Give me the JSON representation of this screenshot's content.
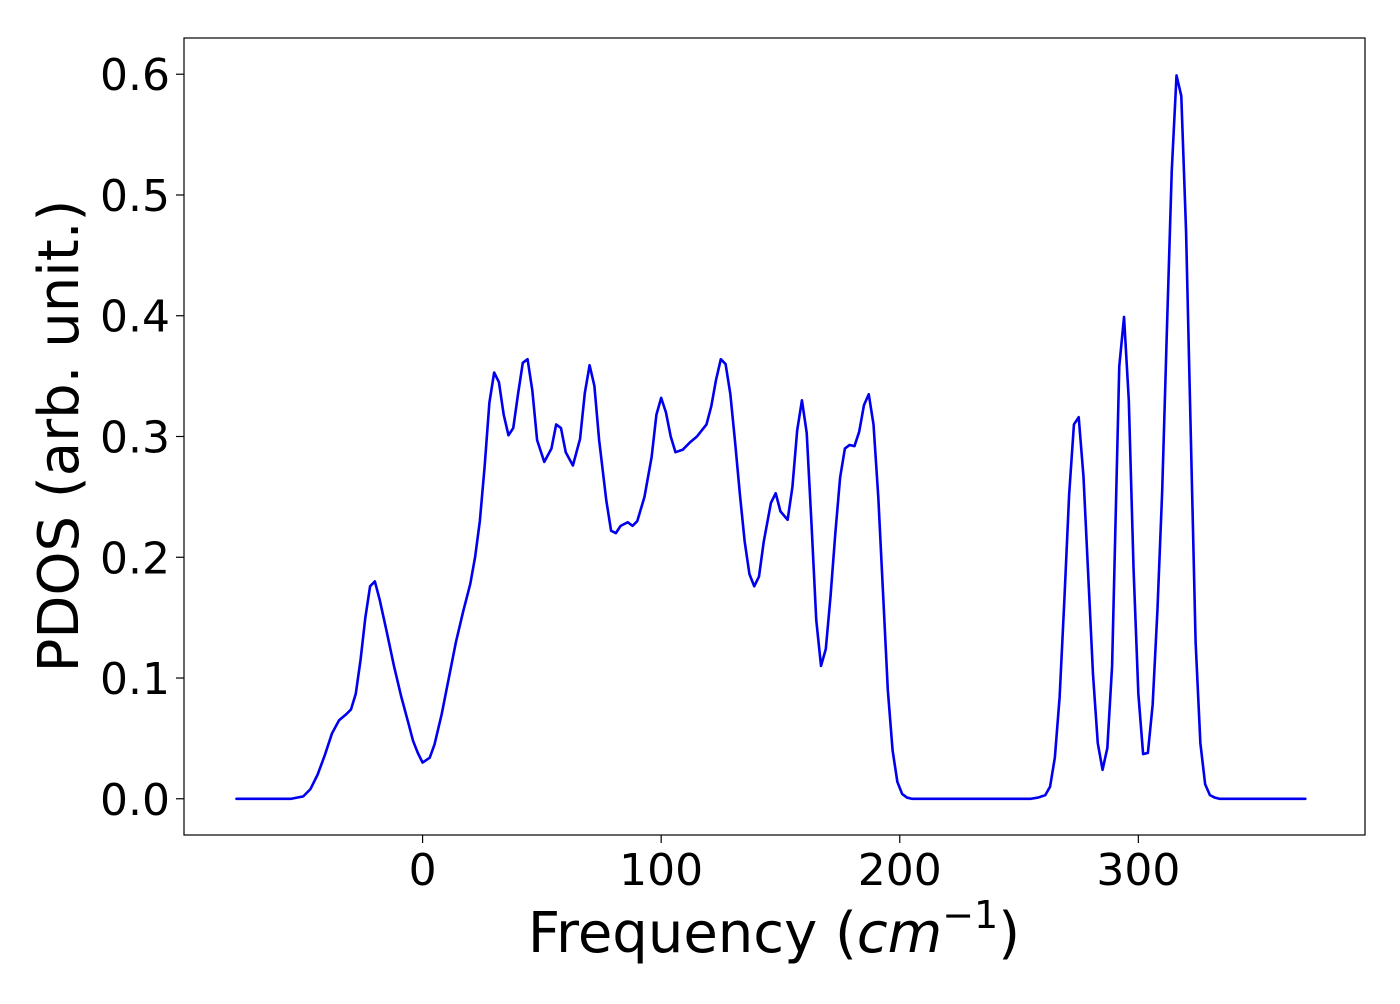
{
  "chart_data": {
    "type": "line",
    "title": "",
    "xlabel": "Frequency",
    "xlabel_unit_base": "cm",
    "xlabel_unit_exp": "−1",
    "ylabel": "PDOS (arb. unit.)",
    "xlim": [
      -100,
      395
    ],
    "ylim": [
      -0.03,
      0.63
    ],
    "xticks": [
      0,
      100,
      200,
      300
    ],
    "yticks": [
      0.0,
      0.1,
      0.2,
      0.3,
      0.4,
      0.5,
      0.6
    ],
    "xtick_labels": [
      "0",
      "100",
      "200",
      "300"
    ],
    "ytick_labels": [
      "0.0",
      "0.1",
      "0.2",
      "0.3",
      "0.4",
      "0.5",
      "0.6"
    ],
    "grid": false,
    "legend": "none",
    "series": [
      {
        "color": "#0000ee",
        "points": [
          [
            -78,
            0.0
          ],
          [
            -55,
            0.0
          ],
          [
            -50,
            0.002
          ],
          [
            -47,
            0.008
          ],
          [
            -44,
            0.02
          ],
          [
            -41,
            0.036
          ],
          [
            -38,
            0.054
          ],
          [
            -35,
            0.065
          ],
          [
            -32,
            0.07
          ],
          [
            -30,
            0.074
          ],
          [
            -28,
            0.087
          ],
          [
            -26,
            0.115
          ],
          [
            -24,
            0.15
          ],
          [
            -22,
            0.176
          ],
          [
            -20,
            0.18
          ],
          [
            -18,
            0.165
          ],
          [
            -15,
            0.138
          ],
          [
            -12,
            0.11
          ],
          [
            -9,
            0.085
          ],
          [
            -6,
            0.063
          ],
          [
            -4,
            0.048
          ],
          [
            -2,
            0.038
          ],
          [
            0,
            0.03
          ],
          [
            3,
            0.034
          ],
          [
            5,
            0.045
          ],
          [
            8,
            0.07
          ],
          [
            11,
            0.1
          ],
          [
            14,
            0.13
          ],
          [
            17,
            0.155
          ],
          [
            20,
            0.178
          ],
          [
            22,
            0.2
          ],
          [
            24,
            0.23
          ],
          [
            26,
            0.275
          ],
          [
            28,
            0.328
          ],
          [
            30,
            0.353
          ],
          [
            32,
            0.345
          ],
          [
            34,
            0.318
          ],
          [
            36,
            0.301
          ],
          [
            38,
            0.307
          ],
          [
            40,
            0.335
          ],
          [
            42,
            0.361
          ],
          [
            44,
            0.364
          ],
          [
            46,
            0.338
          ],
          [
            48,
            0.297
          ],
          [
            51,
            0.279
          ],
          [
            54,
            0.29
          ],
          [
            56,
            0.31
          ],
          [
            58,
            0.307
          ],
          [
            60,
            0.287
          ],
          [
            63,
            0.276
          ],
          [
            66,
            0.298
          ],
          [
            68,
            0.336
          ],
          [
            70,
            0.359
          ],
          [
            72,
            0.342
          ],
          [
            74,
            0.297
          ],
          [
            77,
            0.247
          ],
          [
            79,
            0.222
          ],
          [
            81,
            0.22
          ],
          [
            83,
            0.226
          ],
          [
            86,
            0.229
          ],
          [
            88,
            0.226
          ],
          [
            90,
            0.23
          ],
          [
            93,
            0.25
          ],
          [
            96,
            0.283
          ],
          [
            98,
            0.318
          ],
          [
            100,
            0.332
          ],
          [
            102,
            0.32
          ],
          [
            104,
            0.3
          ],
          [
            106,
            0.287
          ],
          [
            109,
            0.289
          ],
          [
            112,
            0.295
          ],
          [
            115,
            0.3
          ],
          [
            117,
            0.305
          ],
          [
            119,
            0.31
          ],
          [
            121,
            0.325
          ],
          [
            123,
            0.347
          ],
          [
            125,
            0.364
          ],
          [
            127,
            0.36
          ],
          [
            129,
            0.335
          ],
          [
            131,
            0.295
          ],
          [
            133,
            0.252
          ],
          [
            135,
            0.213
          ],
          [
            137,
            0.186
          ],
          [
            139,
            0.176
          ],
          [
            141,
            0.184
          ],
          [
            143,
            0.213
          ],
          [
            146,
            0.245
          ],
          [
            148,
            0.253
          ],
          [
            150,
            0.238
          ],
          [
            153,
            0.231
          ],
          [
            155,
            0.258
          ],
          [
            157,
            0.305
          ],
          [
            159,
            0.33
          ],
          [
            161,
            0.303
          ],
          [
            163,
            0.228
          ],
          [
            165,
            0.148
          ],
          [
            167,
            0.11
          ],
          [
            169,
            0.124
          ],
          [
            171,
            0.168
          ],
          [
            173,
            0.22
          ],
          [
            175,
            0.266
          ],
          [
            177,
            0.29
          ],
          [
            179,
            0.293
          ],
          [
            181,
            0.292
          ],
          [
            183,
            0.304
          ],
          [
            185,
            0.326
          ],
          [
            187,
            0.335
          ],
          [
            189,
            0.31
          ],
          [
            191,
            0.25
          ],
          [
            193,
            0.17
          ],
          [
            195,
            0.09
          ],
          [
            197,
            0.04
          ],
          [
            199,
            0.014
          ],
          [
            201,
            0.004
          ],
          [
            203,
            0.001
          ],
          [
            205,
            0.0
          ],
          [
            255,
            0.0
          ],
          [
            258,
            0.001
          ],
          [
            261,
            0.003
          ],
          [
            263,
            0.01
          ],
          [
            265,
            0.034
          ],
          [
            267,
            0.084
          ],
          [
            269,
            0.165
          ],
          [
            271,
            0.252
          ],
          [
            273,
            0.31
          ],
          [
            275,
            0.316
          ],
          [
            277,
            0.267
          ],
          [
            279,
            0.185
          ],
          [
            281,
            0.103
          ],
          [
            283,
            0.046
          ],
          [
            285,
            0.024
          ],
          [
            287,
            0.042
          ],
          [
            289,
            0.11
          ],
          [
            292,
            0.358
          ],
          [
            294,
            0.399
          ],
          [
            296,
            0.33
          ],
          [
            298,
            0.19
          ],
          [
            300,
            0.087
          ],
          [
            302,
            0.037
          ],
          [
            304,
            0.038
          ],
          [
            306,
            0.078
          ],
          [
            308,
            0.156
          ],
          [
            310,
            0.255
          ],
          [
            312,
            0.39
          ],
          [
            314,
            0.52
          ],
          [
            316,
            0.599
          ],
          [
            318,
            0.582
          ],
          [
            320,
            0.47
          ],
          [
            322,
            0.3
          ],
          [
            324,
            0.13
          ],
          [
            326,
            0.046
          ],
          [
            328,
            0.012
          ],
          [
            330,
            0.003
          ],
          [
            332,
            0.001
          ],
          [
            334,
            0.0
          ],
          [
            370,
            0.0
          ]
        ]
      }
    ]
  }
}
